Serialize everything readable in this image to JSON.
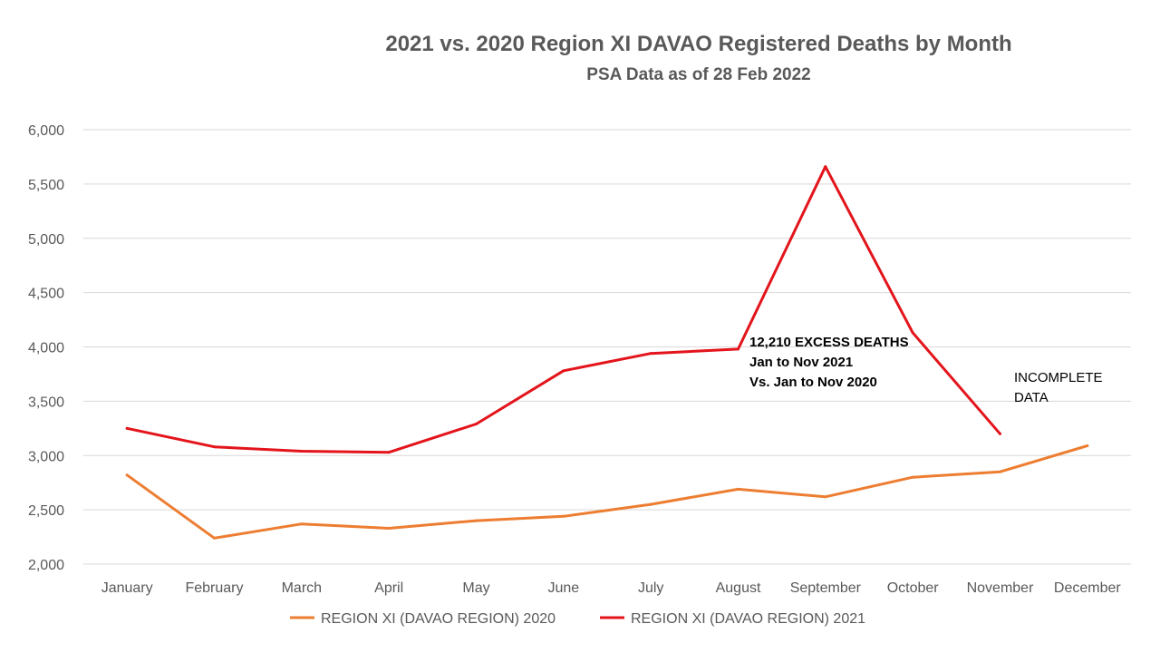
{
  "chart_data": {
    "type": "line",
    "title": "2021 vs. 2020 Region XI DAVAO Registered Deaths by Month",
    "subtitle": "PSA Data as of 28 Feb 2022",
    "categories": [
      "January",
      "February",
      "March",
      "April",
      "May",
      "June",
      "July",
      "August",
      "September",
      "October",
      "November",
      "December"
    ],
    "series": [
      {
        "name": "REGION XI (DAVAO REGION)  2020",
        "color": "#ED7D31",
        "values": [
          2820,
          2240,
          2370,
          2330,
          2400,
          2440,
          2550,
          2690,
          2620,
          2800,
          2850,
          3090
        ]
      },
      {
        "name": "REGION XI (DAVAO REGION)  2021",
        "color": "#E3141B",
        "values": [
          3250,
          3080,
          3040,
          3030,
          3290,
          3780,
          3940,
          3980,
          5660,
          4130,
          3200,
          null
        ]
      }
    ],
    "ylim": [
      2000,
      6000
    ],
    "yticks": [
      2000,
      2500,
      3000,
      3500,
      4000,
      4500,
      5000,
      5500,
      6000
    ],
    "ytick_labels": [
      "2,000",
      "2,500",
      "3,000",
      "3,500",
      "4,000",
      "4,500",
      "5,000",
      "5,500",
      "6,000"
    ],
    "grid": true,
    "legend_position": "bottom",
    "annotations": [
      {
        "id": "excess",
        "lines": [
          "12,210 EXCESS DEATHS",
          "Jan to Nov 2021",
          "Vs. Jan to Nov 2020"
        ],
        "bold": true
      },
      {
        "id": "incomplete",
        "lines": [
          "INCOMPLETE",
          "DATA"
        ],
        "bold": false
      }
    ]
  }
}
